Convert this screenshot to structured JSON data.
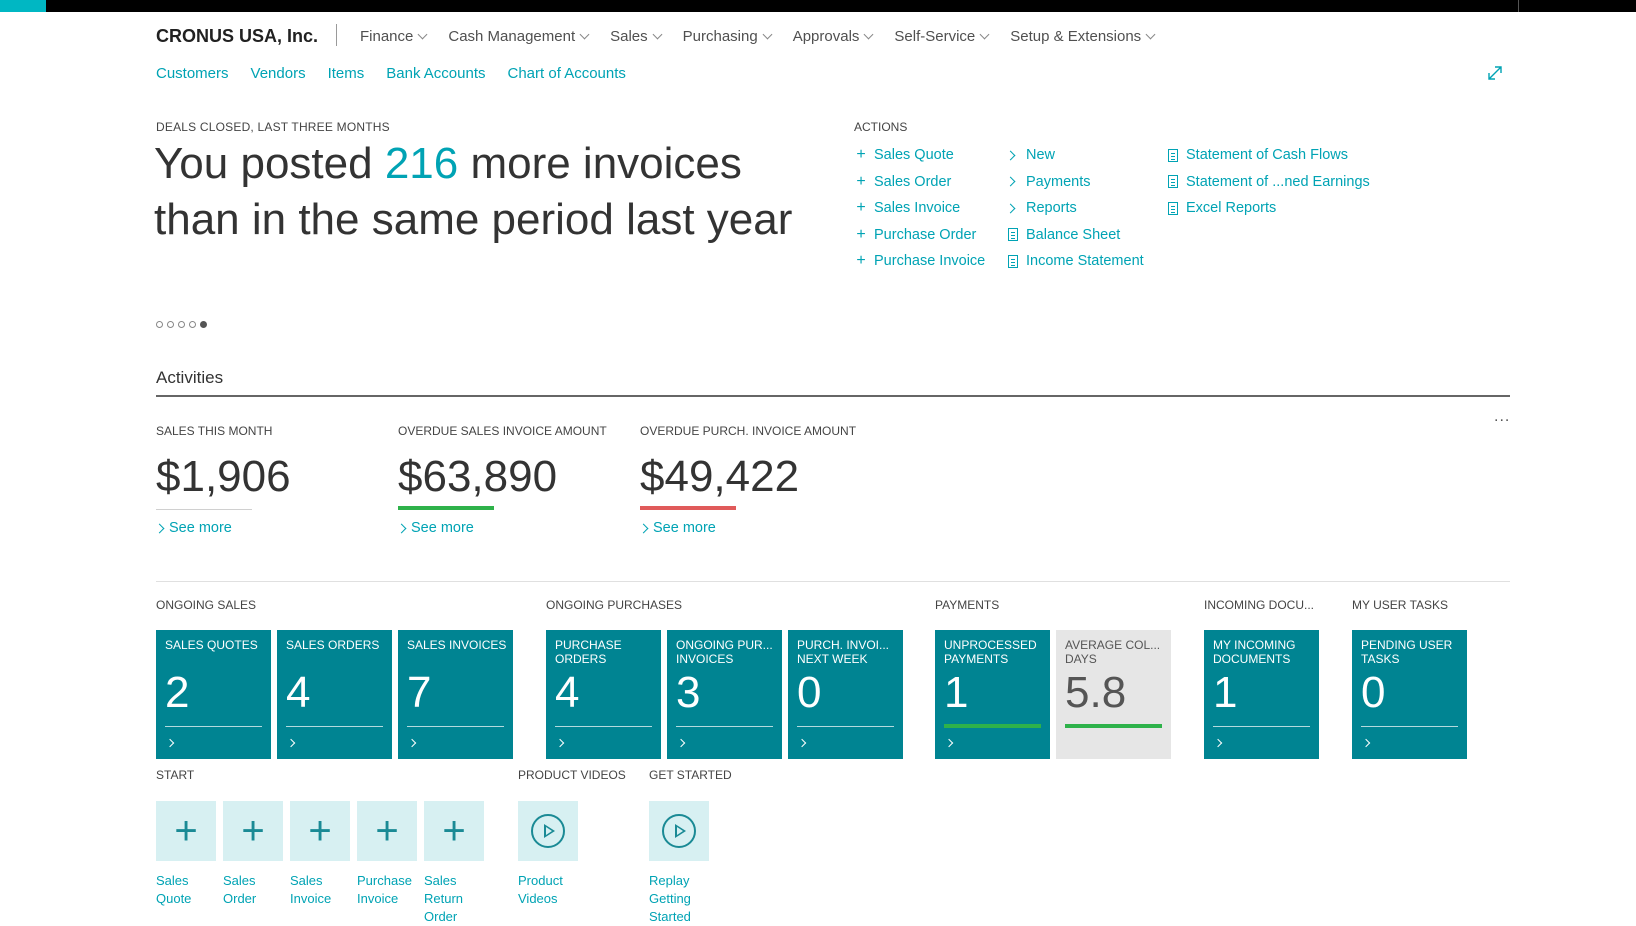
{
  "company": "CRONUS USA, Inc.",
  "menu": [
    "Finance",
    "Cash Management",
    "Sales",
    "Purchasing",
    "Approvals",
    "Self-Service",
    "Setup & Extensions"
  ],
  "nav_links": [
    "Customers",
    "Vendors",
    "Items",
    "Bank Accounts",
    "Chart of Accounts"
  ],
  "headline": {
    "label": "DEALS CLOSED, LAST THREE MONTHS",
    "pre": "You posted ",
    "highlight": "216",
    "post": " more invoices than in the same period last year",
    "slide_count": 5,
    "active_slide": 5
  },
  "actions": {
    "label": "ACTIONS",
    "col1": [
      "Sales Quote",
      "Sales Order",
      "Sales Invoice",
      "Purchase Order",
      "Purchase Invoice"
    ],
    "col2": [
      {
        "icon": "chevron-right-icon",
        "label": "New"
      },
      {
        "icon": "chevron-right-icon",
        "label": "Payments"
      },
      {
        "icon": "chevron-right-icon",
        "label": "Reports"
      },
      {
        "icon": "report-icon",
        "label": "Balance Sheet"
      },
      {
        "icon": "report-icon",
        "label": "Income Statement"
      }
    ],
    "col3": [
      "Statement of Cash Flows",
      "Statement of ...ned Earnings",
      "Excel Reports"
    ]
  },
  "activities": {
    "title": "Activities",
    "more": "...",
    "kpis": [
      {
        "label": "SALES THIS MONTH",
        "value": "$1,906",
        "see_more": "See more",
        "status_color": "#d0d0d0"
      },
      {
        "label": "OVERDUE SALES INVOICE AMOUNT",
        "value": "$63,890",
        "see_more": "See more",
        "status_color": "#2eb24a"
      },
      {
        "label": "OVERDUE PURCH. INVOICE AMOUNT",
        "value": "$49,422",
        "see_more": "See more",
        "status_color": "#e05a5a"
      }
    ]
  },
  "tile_groups": {
    "ongoing_sales": "ONGOING SALES",
    "ongoing_purchases": "ONGOING PURCHASES",
    "payments": "PAYMENTS",
    "incoming_documents": "INCOMING DOCU...",
    "my_user_tasks": "MY USER TASKS"
  },
  "tiles": [
    {
      "label": "SALES QUOTES",
      "value": "2"
    },
    {
      "label": "SALES ORDERS",
      "value": "4"
    },
    {
      "label": "SALES INVOICES",
      "value": "7"
    },
    {
      "label": "PURCHASE ORDERS",
      "value": "4"
    },
    {
      "label": "ONGOING PUR... INVOICES",
      "value": "3"
    },
    {
      "label": "PURCH. INVOI... NEXT WEEK",
      "value": "0"
    },
    {
      "label": "UNPROCESSED PAYMENTS",
      "value": "1"
    },
    {
      "label": "AVERAGE COL... DAYS",
      "value": "5.8"
    },
    {
      "label": "MY INCOMING DOCUMENTS",
      "value": "1"
    },
    {
      "label": "PENDING USER TASKS",
      "value": "0"
    }
  ],
  "start": {
    "label": "START",
    "items": [
      "Sales Quote",
      "Sales Order",
      "Sales Invoice",
      "Purchase Invoice",
      "Sales Return Order"
    ]
  },
  "product_videos": {
    "label": "PRODUCT VIDEOS",
    "item": "Product Videos"
  },
  "get_started": {
    "label": "GET STARTED",
    "item": "Replay Getting Started"
  },
  "colors": {
    "accent": "#00a3b4",
    "tile": "#008492",
    "tile_light": "#e6e6e6",
    "start_tile": "#d7f0f2",
    "good": "#2eb24a",
    "bad": "#e05a5a"
  }
}
